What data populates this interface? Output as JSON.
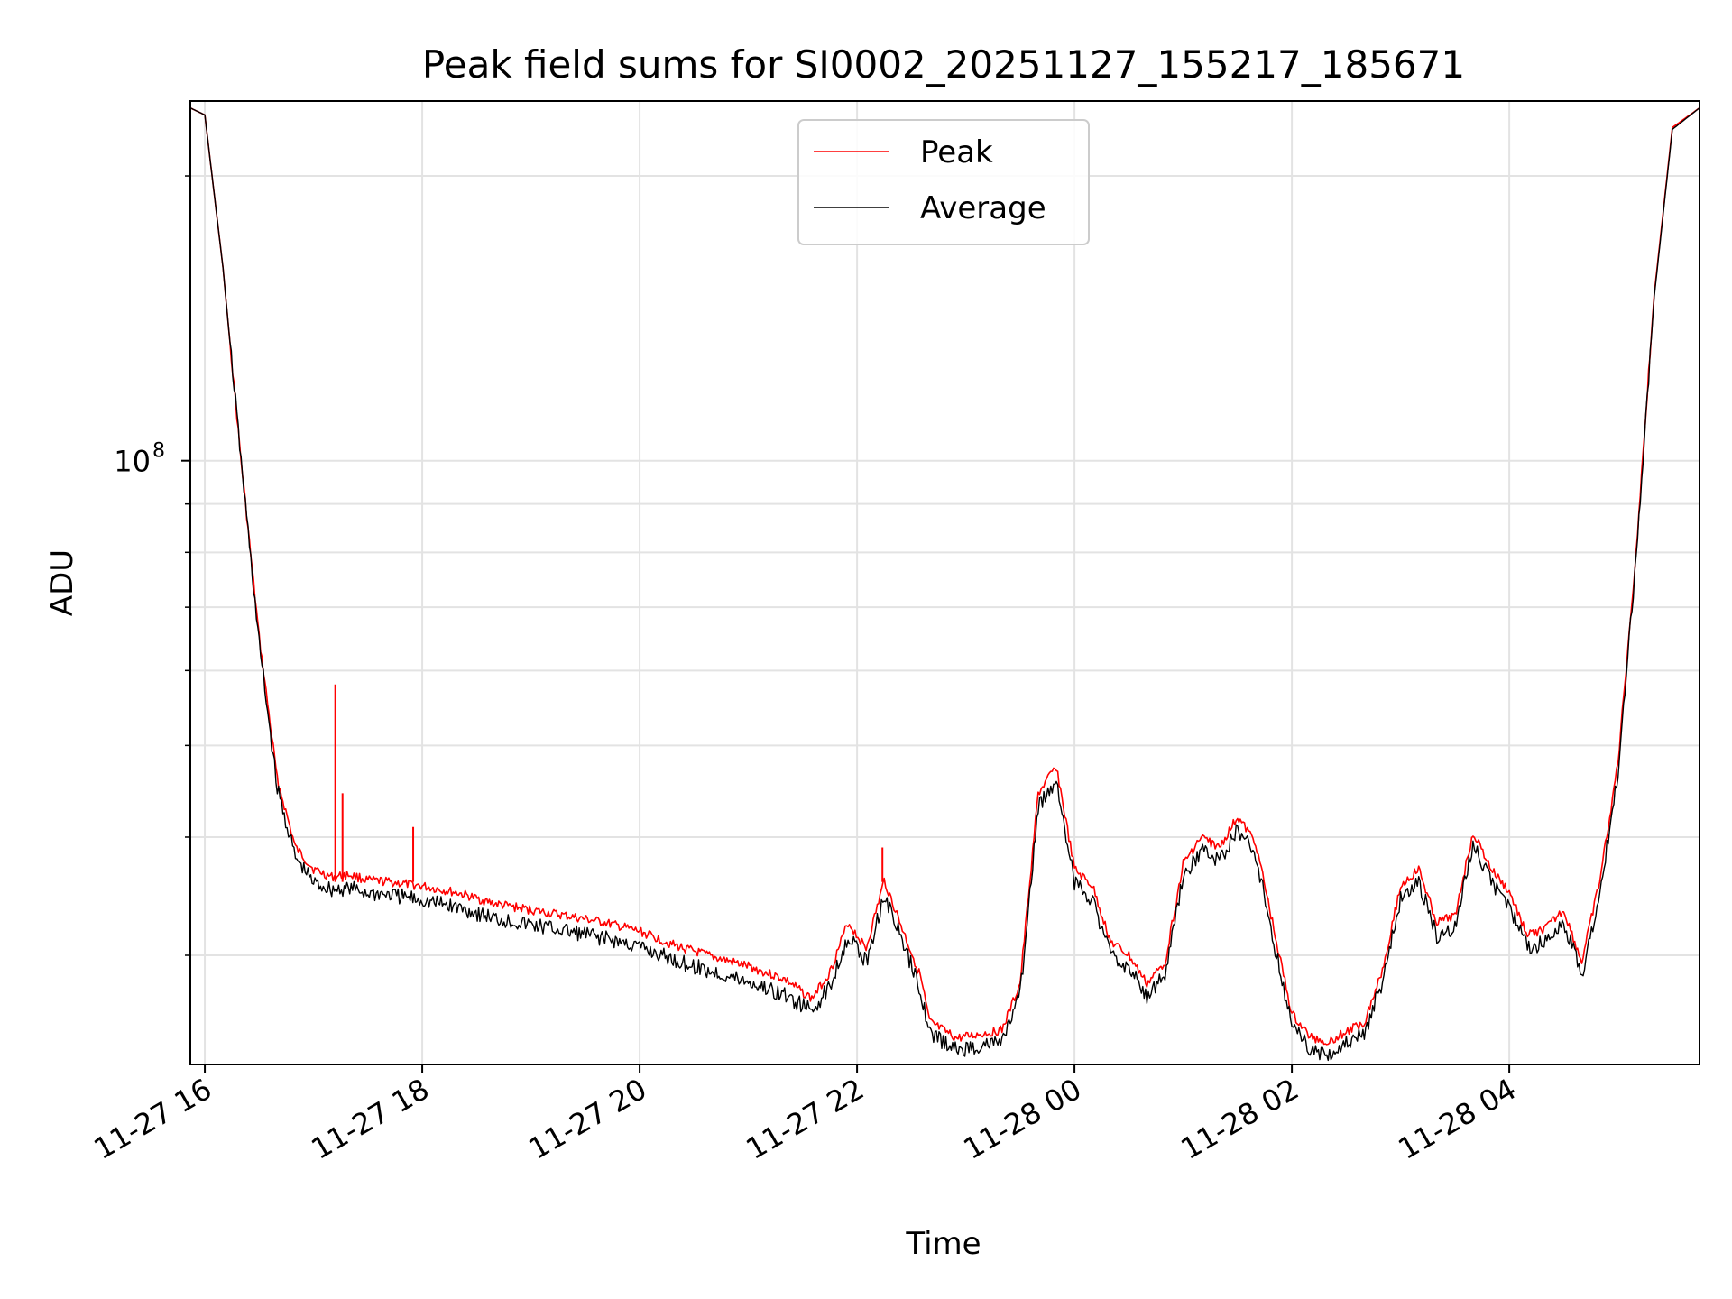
{
  "chart_data": {
    "type": "line",
    "title": "Peak field sums for SI0002_20251127_155217_185671",
    "xlabel": "Time",
    "ylabel": "ADU",
    "yscale": "log",
    "ylim": [
      23000000,
      240000000
    ],
    "xlim": [
      "2025-11-27T15:52",
      "2025-11-28T05:45"
    ],
    "grid": true,
    "legend_position": "top-center",
    "x_ticks": [
      {
        "label": "11-27 16",
        "time": "2025-11-27T16:00"
      },
      {
        "label": "11-27 18",
        "time": "2025-11-27T18:00"
      },
      {
        "label": "11-27 20",
        "time": "2025-11-27T20:00"
      },
      {
        "label": "11-27 22",
        "time": "2025-11-27T22:00"
      },
      {
        "label": "11-28 00",
        "time": "2025-11-28T00:00"
      },
      {
        "label": "11-28 02",
        "time": "2025-11-28T02:00"
      },
      {
        "label": "11-28 04",
        "time": "2025-11-28T04:00"
      }
    ],
    "y_ticks": [
      {
        "label": "10",
        "exp": "8",
        "value": 100000000
      }
    ],
    "series": [
      {
        "name": "Peak",
        "color": "#ff0000",
        "points": [
          [
            "2025-11-27T15:52",
            236000000
          ],
          [
            "2025-11-27T16:00",
            232000000
          ],
          [
            "2025-11-27T16:10",
            160000000
          ],
          [
            "2025-11-27T16:20",
            100000000
          ],
          [
            "2025-11-27T16:30",
            65000000
          ],
          [
            "2025-11-27T16:40",
            46000000
          ],
          [
            "2025-11-27T16:50",
            39000000
          ],
          [
            "2025-11-27T17:00",
            37000000
          ],
          [
            "2025-11-27T17:10",
            36300000
          ],
          [
            "2025-11-27T17:20",
            36500000
          ],
          [
            "2025-11-27T17:30",
            36000000
          ],
          [
            "2025-11-27T17:40",
            35900000
          ],
          [
            "2025-11-27T18:00",
            35500000
          ],
          [
            "2025-11-27T18:20",
            34900000
          ],
          [
            "2025-11-27T18:40",
            34000000
          ],
          [
            "2025-11-27T19:00",
            33500000
          ],
          [
            "2025-11-27T19:20",
            33000000
          ],
          [
            "2025-11-27T19:40",
            32500000
          ],
          [
            "2025-11-27T20:00",
            31800000
          ],
          [
            "2025-11-27T20:20",
            30700000
          ],
          [
            "2025-11-27T20:40",
            29900000
          ],
          [
            "2025-11-27T21:00",
            29200000
          ],
          [
            "2025-11-27T21:20",
            28300000
          ],
          [
            "2025-11-27T21:35",
            27000000
          ],
          [
            "2025-11-27T21:45",
            28800000
          ],
          [
            "2025-11-27T21:55",
            32500000
          ],
          [
            "2025-11-27T22:05",
            30500000
          ],
          [
            "2025-11-27T22:15",
            36000000
          ],
          [
            "2025-11-27T22:25",
            32000000
          ],
          [
            "2025-11-27T22:35",
            28500000
          ],
          [
            "2025-11-27T22:40",
            25500000
          ],
          [
            "2025-11-27T22:55",
            24500000
          ],
          [
            "2025-11-27T23:10",
            24800000
          ],
          [
            "2025-11-27T23:20",
            25000000
          ],
          [
            "2025-11-27T23:30",
            28000000
          ],
          [
            "2025-11-27T23:40",
            44500000
          ],
          [
            "2025-11-27T23:50",
            47500000
          ],
          [
            "2025-11-28T00:00",
            37000000
          ],
          [
            "2025-11-28T00:10",
            35500000
          ],
          [
            "2025-11-28T00:20",
            31000000
          ],
          [
            "2025-11-28T00:30",
            30000000
          ],
          [
            "2025-11-28T00:40",
            28000000
          ],
          [
            "2025-11-28T00:50",
            29500000
          ],
          [
            "2025-11-28T01:00",
            37500000
          ],
          [
            "2025-11-28T01:10",
            40000000
          ],
          [
            "2025-11-28T01:20",
            39000000
          ],
          [
            "2025-11-28T01:30",
            42000000
          ],
          [
            "2025-11-28T01:40",
            39500000
          ],
          [
            "2025-11-28T01:50",
            32000000
          ],
          [
            "2025-11-28T02:00",
            26000000
          ],
          [
            "2025-11-28T02:10",
            24600000
          ],
          [
            "2025-11-28T02:20",
            24300000
          ],
          [
            "2025-11-28T02:30",
            24900000
          ],
          [
            "2025-11-28T02:40",
            25500000
          ],
          [
            "2025-11-28T02:50",
            29000000
          ],
          [
            "2025-11-28T03:00",
            35500000
          ],
          [
            "2025-11-28T03:10",
            37000000
          ],
          [
            "2025-11-28T03:20",
            32500000
          ],
          [
            "2025-11-28T03:30",
            33000000
          ],
          [
            "2025-11-28T03:40",
            40500000
          ],
          [
            "2025-11-28T03:50",
            37000000
          ],
          [
            "2025-11-28T04:00",
            35000000
          ],
          [
            "2025-11-28T04:10",
            31500000
          ],
          [
            "2025-11-28T04:20",
            32000000
          ],
          [
            "2025-11-28T04:30",
            33500000
          ],
          [
            "2025-11-28T04:40",
            29500000
          ],
          [
            "2025-11-28T04:50",
            36000000
          ],
          [
            "2025-11-28T05:00",
            48000000
          ],
          [
            "2025-11-28T05:10",
            80000000
          ],
          [
            "2025-11-28T05:20",
            150000000
          ],
          [
            "2025-11-28T05:30",
            225000000
          ],
          [
            "2025-11-28T05:45",
            236000000
          ]
        ]
      },
      {
        "name": "Average",
        "color": "#000000",
        "points": [
          [
            "2025-11-27T15:52",
            236000000
          ],
          [
            "2025-11-27T16:00",
            232000000
          ],
          [
            "2025-11-27T16:10",
            160000000
          ],
          [
            "2025-11-27T16:20",
            100000000
          ],
          [
            "2025-11-27T16:30",
            64000000
          ],
          [
            "2025-11-27T16:40",
            45000000
          ],
          [
            "2025-11-27T16:50",
            38000000
          ],
          [
            "2025-11-27T17:00",
            35800000
          ],
          [
            "2025-11-27T17:10",
            35200000
          ],
          [
            "2025-11-27T17:20",
            35300000
          ],
          [
            "2025-11-27T17:30",
            34900000
          ],
          [
            "2025-11-27T17:40",
            34800000
          ],
          [
            "2025-11-27T18:00",
            34300000
          ],
          [
            "2025-11-27T18:20",
            33700000
          ],
          [
            "2025-11-27T18:40",
            32800000
          ],
          [
            "2025-11-27T19:00",
            32300000
          ],
          [
            "2025-11-27T19:20",
            31800000
          ],
          [
            "2025-11-27T19:40",
            31300000
          ],
          [
            "2025-11-27T20:00",
            30600000
          ],
          [
            "2025-11-27T20:20",
            29600000
          ],
          [
            "2025-11-27T20:40",
            28800000
          ],
          [
            "2025-11-27T21:00",
            28100000
          ],
          [
            "2025-11-27T21:20",
            27200000
          ],
          [
            "2025-11-27T21:35",
            26200000
          ],
          [
            "2025-11-27T21:45",
            27800000
          ],
          [
            "2025-11-27T21:55",
            31500000
          ],
          [
            "2025-11-27T22:05",
            29500000
          ],
          [
            "2025-11-27T22:15",
            34800000
          ],
          [
            "2025-11-27T22:25",
            31000000
          ],
          [
            "2025-11-27T22:35",
            27600000
          ],
          [
            "2025-11-27T22:40",
            24800000
          ],
          [
            "2025-11-27T22:55",
            23800000
          ],
          [
            "2025-11-27T23:10",
            24100000
          ],
          [
            "2025-11-27T23:20",
            24300000
          ],
          [
            "2025-11-27T23:30",
            27200000
          ],
          [
            "2025-11-27T23:40",
            43000000
          ],
          [
            "2025-11-27T23:50",
            46000000
          ],
          [
            "2025-11-28T00:00",
            35800000
          ],
          [
            "2025-11-28T00:10",
            34400000
          ],
          [
            "2025-11-28T00:20",
            30000000
          ],
          [
            "2025-11-28T00:30",
            29100000
          ],
          [
            "2025-11-28T00:40",
            27200000
          ],
          [
            "2025-11-28T00:50",
            28600000
          ],
          [
            "2025-11-28T01:00",
            36300000
          ],
          [
            "2025-11-28T01:10",
            38700000
          ],
          [
            "2025-11-28T01:20",
            37800000
          ],
          [
            "2025-11-28T01:30",
            40700000
          ],
          [
            "2025-11-28T01:40",
            38300000
          ],
          [
            "2025-11-28T01:50",
            31000000
          ],
          [
            "2025-11-28T02:00",
            25300000
          ],
          [
            "2025-11-28T02:10",
            23900000
          ],
          [
            "2025-11-28T02:20",
            23600000
          ],
          [
            "2025-11-28T02:30",
            24200000
          ],
          [
            "2025-11-28T02:40",
            24800000
          ],
          [
            "2025-11-28T02:50",
            28100000
          ],
          [
            "2025-11-28T03:00",
            34400000
          ],
          [
            "2025-11-28T03:10",
            35900000
          ],
          [
            "2025-11-28T03:20",
            31500000
          ],
          [
            "2025-11-28T03:30",
            32000000
          ],
          [
            "2025-11-28T03:40",
            39300000
          ],
          [
            "2025-11-28T03:50",
            35900000
          ],
          [
            "2025-11-28T04:00",
            33900000
          ],
          [
            "2025-11-28T04:10",
            30500000
          ],
          [
            "2025-11-28T04:20",
            31000000
          ],
          [
            "2025-11-28T04:30",
            32500000
          ],
          [
            "2025-11-28T04:40",
            28600000
          ],
          [
            "2025-11-28T04:50",
            35000000
          ],
          [
            "2025-11-28T05:00",
            47000000
          ],
          [
            "2025-11-28T05:10",
            79000000
          ],
          [
            "2025-11-28T05:20",
            149000000
          ],
          [
            "2025-11-28T05:30",
            224000000
          ],
          [
            "2025-11-28T05:45",
            236000000
          ]
        ]
      }
    ],
    "peak_spikes": [
      {
        "time": "2025-11-27T17:12",
        "value": 58000000
      },
      {
        "time": "2025-11-27T17:16",
        "value": 44500000
      },
      {
        "time": "2025-11-27T17:55",
        "value": 41000000
      },
      {
        "time": "2025-11-27T22:14",
        "value": 39000000
      }
    ]
  }
}
